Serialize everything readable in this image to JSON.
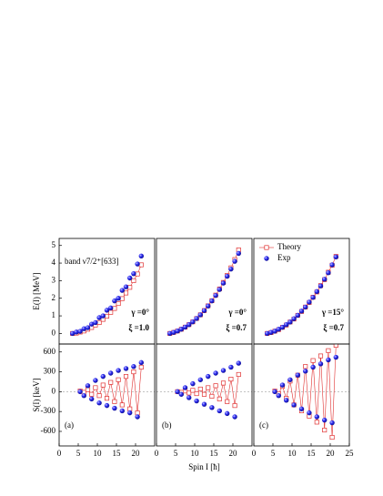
{
  "chart_data": [
    {
      "type": "scatter",
      "xlim": [
        0,
        25
      ],
      "ylim": [
        -0.6,
        5.4
      ],
      "yticks": [
        0,
        1,
        2,
        3,
        4,
        5
      ],
      "ylabel": "E(I) [MeV]",
      "label": "band ν7/2⁺[633]",
      "annotations": [
        "γ =0°",
        "ξ =1.0"
      ],
      "x": [
        3.5,
        4.5,
        5.5,
        6.5,
        7.5,
        8.5,
        9.5,
        10.5,
        11.5,
        12.5,
        13.5,
        14.5,
        15.5,
        16.5,
        17.5,
        18.5,
        19.5,
        20.5,
        21.5
      ],
      "series": [
        {
          "name": "Theory",
          "color": "#e03030",
          "values": [
            0,
            0.02,
            0.08,
            0.14,
            0.24,
            0.34,
            0.48,
            0.62,
            0.8,
            0.98,
            1.2,
            1.42,
            1.7,
            1.98,
            2.3,
            2.62,
            3.0,
            3.38,
            3.9
          ]
        },
        {
          "name": "Exp",
          "color": "#1a1ae6",
          "values": [
            0,
            0.08,
            0.12,
            0.27,
            0.33,
            0.53,
            0.62,
            0.9,
            1.0,
            1.32,
            1.45,
            1.85,
            2.0,
            2.45,
            2.65,
            3.15,
            3.4,
            3.95,
            4.4
          ]
        }
      ]
    },
    {
      "type": "scatter",
      "xlim": [
        0,
        25
      ],
      "ylim": [
        -0.6,
        5.4
      ],
      "annotations": [
        "γ =0°",
        "ξ =0.7"
      ],
      "x": [
        3.5,
        4.5,
        5.5,
        6.5,
        7.5,
        8.5,
        9.5,
        10.5,
        11.5,
        12.5,
        13.5,
        14.5,
        15.5,
        16.5,
        17.5,
        18.5,
        19.5,
        20.5,
        21.5
      ],
      "series": [
        {
          "name": "Theory",
          "color": "#e03030",
          "values": [
            0,
            0.06,
            0.14,
            0.24,
            0.36,
            0.5,
            0.66,
            0.85,
            1.06,
            1.3,
            1.57,
            1.86,
            2.18,
            2.53,
            2.9,
            3.3,
            3.73,
            4.2,
            4.75
          ]
        },
        {
          "name": "Exp",
          "color": "#1a1ae6",
          "values": [
            0,
            0.06,
            0.14,
            0.24,
            0.36,
            0.5,
            0.66,
            0.85,
            1.06,
            1.3,
            1.56,
            1.85,
            2.16,
            2.5,
            2.86,
            3.25,
            3.66,
            4.1,
            4.55
          ]
        }
      ]
    },
    {
      "type": "scatter",
      "xlim": [
        0,
        25
      ],
      "ylim": [
        -0.6,
        5.4
      ],
      "annotations": [
        "γ =15°",
        "ξ =0.7"
      ],
      "legend": "upper left",
      "x": [
        3.5,
        4.5,
        5.5,
        6.5,
        7.5,
        8.5,
        9.5,
        10.5,
        11.5,
        12.5,
        13.5,
        14.5,
        15.5,
        16.5,
        17.5,
        18.5,
        19.5,
        20.5,
        21.5
      ],
      "series": [
        {
          "name": "Theory",
          "color": "#e03030",
          "values": [
            0,
            0.05,
            0.13,
            0.22,
            0.35,
            0.48,
            0.65,
            0.82,
            1.03,
            1.25,
            1.5,
            1.76,
            2.06,
            2.36,
            2.72,
            3.06,
            3.48,
            3.88,
            4.38
          ]
        },
        {
          "name": "Exp",
          "color": "#1a1ae6",
          "values": [
            0,
            0.06,
            0.13,
            0.24,
            0.35,
            0.5,
            0.65,
            0.84,
            1.03,
            1.27,
            1.5,
            1.78,
            2.05,
            2.38,
            2.7,
            3.08,
            3.45,
            3.9,
            4.35
          ]
        }
      ]
    },
    {
      "type": "scatter",
      "xlim": [
        0,
        25
      ],
      "ylim": [
        -820,
        720
      ],
      "xticks": [
        0,
        5,
        10,
        15,
        20
      ],
      "yticks": [
        -600,
        -300,
        0,
        300,
        600
      ],
      "ylabel": "S(I) [keV]",
      "label": "(a)",
      "x": [
        5.5,
        6.5,
        7.5,
        8.5,
        9.5,
        10.5,
        11.5,
        12.5,
        13.5,
        14.5,
        15.5,
        16.5,
        17.5,
        18.5,
        19.5,
        20.5,
        21.5
      ],
      "series": [
        {
          "name": "Theory",
          "color": "#e03030",
          "values": [
            10,
            -10,
            30,
            -40,
            60,
            -60,
            100,
            -100,
            140,
            -150,
            180,
            -200,
            230,
            -260,
            300,
            -320,
            370
          ]
        },
        {
          "name": "Exp",
          "color": "#1a1ae6",
          "values": [
            0,
            -60,
            90,
            -110,
            170,
            -170,
            230,
            -210,
            280,
            -250,
            320,
            -290,
            350,
            -320,
            380,
            -380,
            440
          ]
        }
      ]
    },
    {
      "type": "scatter",
      "xlim": [
        0,
        25
      ],
      "ylim": [
        -820,
        720
      ],
      "xticks": [
        0,
        5,
        10,
        15,
        20
      ],
      "xlabel": "Spin I [ħ]",
      "label": "(b)",
      "x": [
        5.5,
        6.5,
        7.5,
        8.5,
        9.5,
        10.5,
        11.5,
        12.5,
        13.5,
        14.5,
        15.5,
        16.5,
        17.5,
        18.5,
        19.5,
        20.5,
        21.5
      ],
      "series": [
        {
          "name": "Theory",
          "color": "#e03030",
          "values": [
            0,
            -10,
            10,
            -20,
            20,
            -30,
            40,
            -40,
            60,
            -70,
            90,
            -110,
            130,
            -150,
            190,
            -210,
            260
          ]
        },
        {
          "name": "Exp",
          "color": "#1a1ae6",
          "values": [
            0,
            -40,
            60,
            -90,
            120,
            -140,
            180,
            -190,
            230,
            -240,
            280,
            -290,
            320,
            -330,
            370,
            -380,
            430
          ]
        }
      ]
    },
    {
      "type": "scatter",
      "xlim": [
        0,
        25
      ],
      "ylim": [
        -820,
        720
      ],
      "xticks": [
        0,
        5,
        10,
        15,
        20,
        25
      ],
      "label": "(c)",
      "x": [
        5.5,
        6.5,
        7.5,
        8.5,
        9.5,
        10.5,
        11.5,
        12.5,
        13.5,
        14.5,
        15.5,
        16.5,
        17.5,
        18.5,
        19.5,
        20.5,
        21.5
      ],
      "series": [
        {
          "name": "Theory",
          "color": "#e03030",
          "values": [
            10,
            -30,
            80,
            -100,
            160,
            -200,
            250,
            -290,
            380,
            -370,
            470,
            -460,
            540,
            -580,
            620,
            -690,
            700
          ]
        },
        {
          "name": "Exp",
          "color": "#1a1ae6",
          "values": [
            0,
            -60,
            100,
            -130,
            180,
            -200,
            250,
            -260,
            310,
            -320,
            370,
            -380,
            420,
            -430,
            480,
            -470,
            520
          ]
        }
      ]
    }
  ]
}
